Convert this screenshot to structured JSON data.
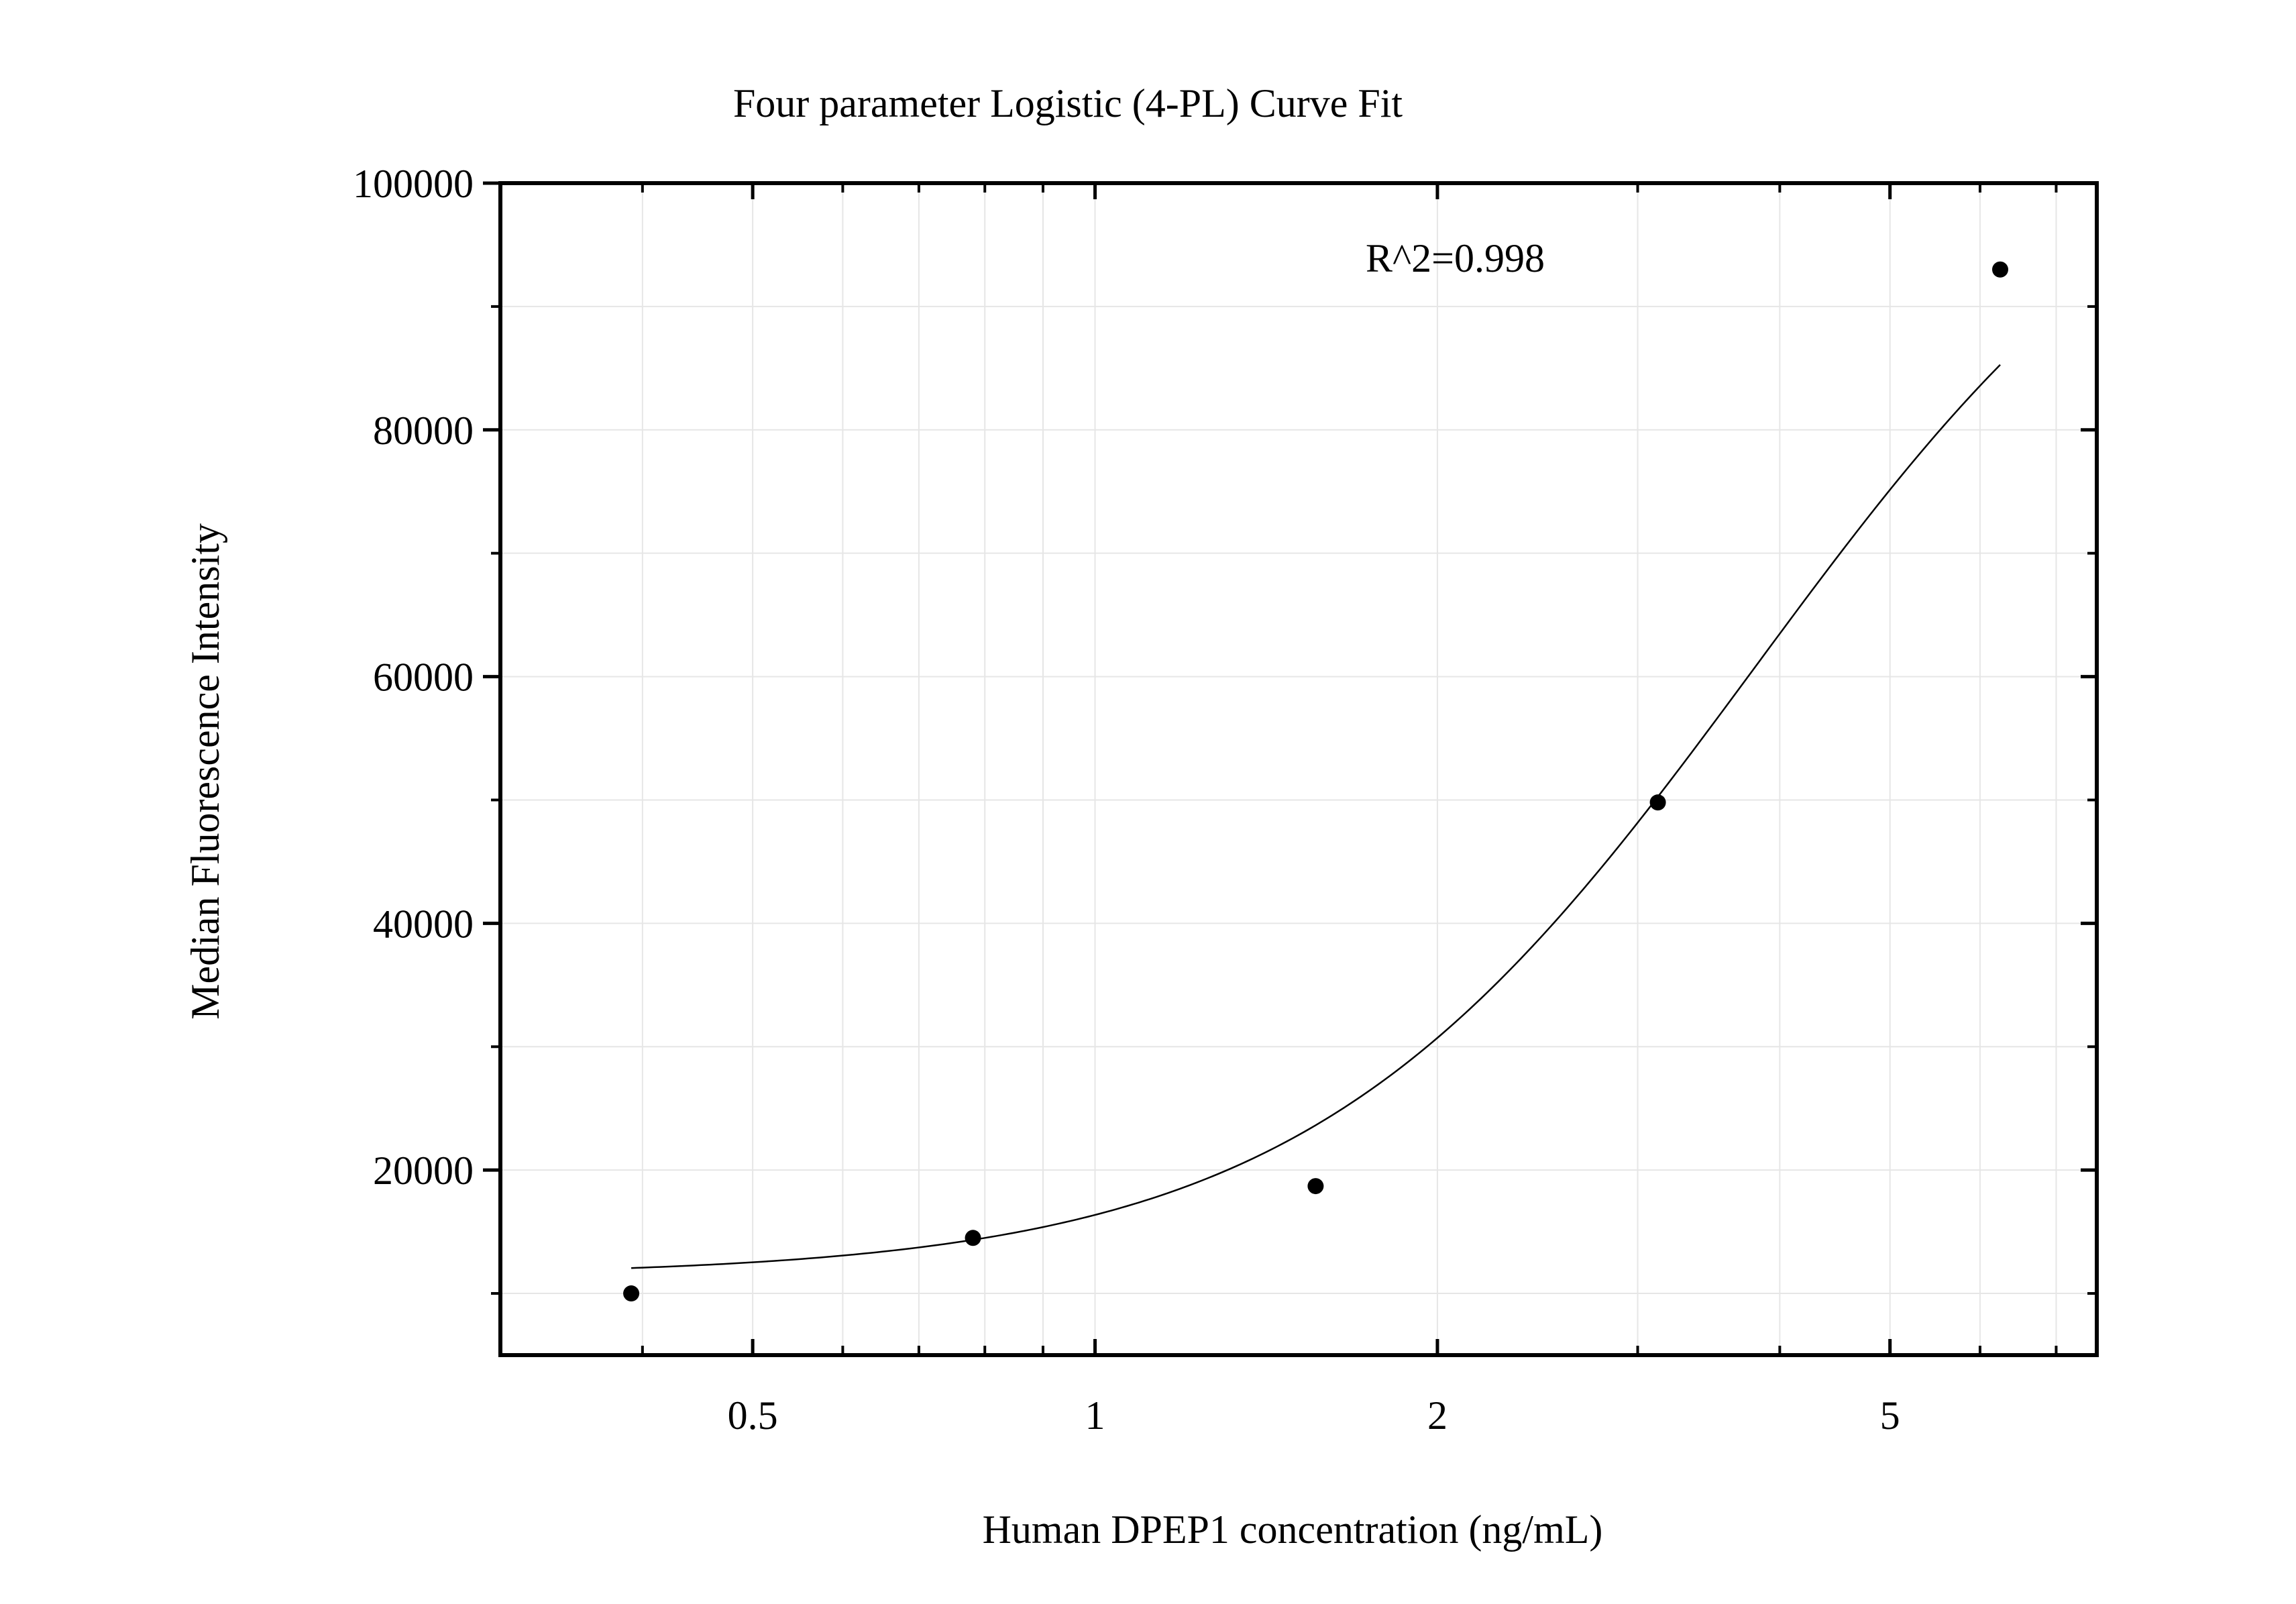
{
  "chart_data": {
    "type": "scatter",
    "title": "Four parameter Logistic (4-PL) Curve Fit",
    "xlabel": "Human DPEP1 concentration (ng/mL)",
    "ylabel": "Median Fluorescence Intensity",
    "annotation": "R^2=0.998",
    "x_scale": "log",
    "xlim": [
      0.3,
      7.6
    ],
    "ylim": [
      5000,
      100000
    ],
    "x_ticks": [
      {
        "value": 0.5,
        "label": "0.5"
      },
      {
        "value": 1,
        "label": "1"
      },
      {
        "value": 2,
        "label": "2"
      },
      {
        "value": 5,
        "label": "5"
      }
    ],
    "y_ticks": [
      {
        "value": 20000,
        "label": "20000"
      },
      {
        "value": 40000,
        "label": "40000"
      },
      {
        "value": 60000,
        "label": "60000"
      },
      {
        "value": 80000,
        "label": "80000"
      },
      {
        "value": 100000,
        "label": "100000"
      }
    ],
    "grid": true,
    "points": {
      "x": [
        0.391,
        0.781,
        1.563,
        3.125,
        6.25
      ],
      "y": [
        10000,
        14500,
        18700,
        49800,
        93000
      ]
    },
    "fit": {
      "model": "4PL",
      "bottom": 11400,
      "top": 110000,
      "ec50": 3.8,
      "hill": 2.2,
      "x_range": [
        0.391,
        6.25
      ]
    },
    "colors": {
      "points": "#000000",
      "curve": "#000000",
      "grid": "#e6e6e6",
      "axes": "#000000"
    }
  }
}
